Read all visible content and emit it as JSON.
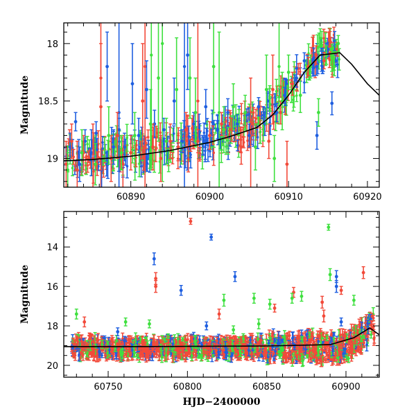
{
  "chart_data": [
    {
      "type": "scatter",
      "panel": "top",
      "xlabel": "",
      "ylabel": "Magnitude",
      "xlim": [
        60881.5,
        60921.5
      ],
      "ylim": [
        19.25,
        17.82
      ],
      "y_inverted": true,
      "xticks_major": [
        60890,
        60900,
        60910,
        60920
      ],
      "xtick_labels": [
        "60890",
        "60900",
        "60910",
        "60920"
      ],
      "yticks_major": [
        18,
        18.5,
        19
      ],
      "ytick_labels": [
        "18",
        "18.5",
        "19"
      ],
      "series_colors": [
        "#1f5fe0",
        "#f24a3a",
        "#3fe03f"
      ],
      "model_curve": {
        "x": [
          60881.5,
          60885,
          60890,
          60895,
          60900,
          60903,
          60906,
          60908,
          60910,
          60912,
          60914,
          60916.5,
          60918,
          60920,
          60921.5
        ],
        "y": [
          19.02,
          19.01,
          18.98,
          18.93,
          18.86,
          18.8,
          18.73,
          18.62,
          18.45,
          18.25,
          18.1,
          18.08,
          18.18,
          18.35,
          18.45
        ]
      },
      "series": [
        {
          "color": "#1f5fe0",
          "points": [
            [
              60882.3,
              18.9,
              0.12
            ],
            [
              60883.0,
              18.68,
              0.08
            ],
            [
              60883.5,
              19.05,
              0.15
            ],
            [
              60884.2,
              18.85,
              0.1
            ],
            [
              60885.0,
              18.95,
              0.2
            ],
            [
              60885.6,
              18.78,
              0.1
            ],
            [
              60886.3,
              19.1,
              0.18
            ],
            [
              60887.0,
              18.2,
              0.3
            ],
            [
              60887.8,
              18.9,
              0.15
            ],
            [
              60888.5,
              18.75,
              0.1
            ],
            [
              60889.2,
              18.9,
              0.12
            ],
            [
              60890.2,
              18.35,
              0.35
            ],
            [
              60891.0,
              18.8,
              0.15
            ],
            [
              60892.0,
              18.4,
              0.25
            ],
            [
              60893.0,
              18.7,
              0.12
            ],
            [
              60894.2,
              18.75,
              0.1
            ],
            [
              60895.5,
              18.5,
              0.2
            ],
            [
              60896.5,
              18.85,
              0.1
            ],
            [
              60897.2,
              18.1,
              0.3
            ],
            [
              60898.0,
              18.7,
              0.1
            ],
            [
              60899.5,
              18.55,
              0.15
            ],
            [
              60901.0,
              18.75,
              0.08
            ],
            [
              60902.3,
              18.6,
              0.12
            ],
            [
              60903.5,
              18.7,
              0.08
            ],
            [
              60905.0,
              18.8,
              0.1
            ],
            [
              60906.2,
              18.55,
              0.08
            ],
            [
              60907.0,
              18.7,
              0.1
            ],
            [
              60908.5,
              18.6,
              0.08
            ],
            [
              60909.5,
              18.45,
              0.07
            ],
            [
              60911.0,
              18.3,
              0.08
            ],
            [
              60912.0,
              18.15,
              0.07
            ],
            [
              60913.0,
              18.2,
              0.06
            ],
            [
              60913.6,
              18.8,
              0.12
            ],
            [
              60914.2,
              18.1,
              0.06
            ],
            [
              60915.0,
              18.05,
              0.06
            ],
            [
              60915.5,
              18.52,
              0.1
            ],
            [
              60916.0,
              18.15,
              0.05
            ]
          ]
        },
        {
          "color": "#f24a3a",
          "points": [
            [
              60881.8,
              19.05,
              0.2
            ],
            [
              60882.5,
              18.85,
              0.15
            ],
            [
              60883.2,
              19.1,
              0.25
            ],
            [
              60884.0,
              18.95,
              0.15
            ],
            [
              60885.2,
              19.0,
              0.3
            ],
            [
              60886.2,
              18.55,
              0.55
            ],
            [
              60887.5,
              19.0,
              0.2
            ],
            [
              60888.3,
              18.8,
              0.2
            ],
            [
              60889.0,
              19.05,
              0.25
            ],
            [
              60890.0,
              18.95,
              0.15
            ],
            [
              60891.5,
              18.5,
              0.5
            ],
            [
              60892.8,
              18.9,
              0.2
            ],
            [
              60893.8,
              19.0,
              0.2
            ],
            [
              60895.0,
              18.85,
              0.15
            ],
            [
              60896.0,
              18.9,
              0.12
            ],
            [
              60897.0,
              18.75,
              0.15
            ],
            [
              60898.5,
              18.85,
              0.1
            ],
            [
              60900.0,
              18.8,
              0.12
            ],
            [
              60901.5,
              18.7,
              0.1
            ],
            [
              60902.8,
              18.75,
              0.1
            ],
            [
              60904.0,
              18.9,
              0.15
            ],
            [
              60905.5,
              18.7,
              0.1
            ],
            [
              60907.5,
              18.85,
              0.15
            ],
            [
              60908.0,
              18.4,
              0.3
            ],
            [
              60909.0,
              18.6,
              0.1
            ],
            [
              60909.8,
              19.05,
              0.2
            ],
            [
              60910.5,
              18.35,
              0.1
            ],
            [
              60912.5,
              18.2,
              0.08
            ],
            [
              60913.5,
              18.1,
              0.08
            ],
            [
              60914.5,
              18.15,
              0.07
            ],
            [
              60915.2,
              17.95,
              0.08
            ],
            [
              60916.2,
              18.05,
              0.06
            ]
          ]
        },
        {
          "color": "#3fe03f",
          "points": [
            [
              60882.0,
              19.1,
              0.15
            ],
            [
              60883.8,
              18.95,
              0.2
            ],
            [
              60885.5,
              19.05,
              0.18
            ],
            [
              60887.2,
              18.8,
              0.25
            ],
            [
              60888.8,
              18.95,
              0.15
            ],
            [
              60890.5,
              18.8,
              0.2
            ],
            [
              60892.5,
              18.7,
              0.3
            ],
            [
              60893.5,
              18.3,
              0.55
            ],
            [
              60894.5,
              18.85,
              0.2
            ],
            [
              60895.8,
              18.4,
              0.45
            ],
            [
              60897.5,
              18.3,
              0.35
            ],
            [
              60898.2,
              18.6,
              0.3
            ],
            [
              60900.5,
              18.2,
              0.4
            ],
            [
              60901.8,
              18.75,
              0.2
            ],
            [
              60903.0,
              18.55,
              0.2
            ],
            [
              60904.5,
              18.6,
              0.15
            ],
            [
              60905.8,
              18.9,
              0.2
            ],
            [
              60907.2,
              18.4,
              0.3
            ],
            [
              60908.2,
              19.0,
              0.2
            ],
            [
              60909.2,
              18.5,
              0.25
            ],
            [
              60910.0,
              18.25,
              0.15
            ],
            [
              60911.5,
              18.45,
              0.15
            ],
            [
              60912.8,
              18.2,
              0.1
            ],
            [
              60913.8,
              18.6,
              0.12
            ],
            [
              60914.8,
              18.1,
              0.08
            ],
            [
              60915.8,
              18.2,
              0.08
            ],
            [
              60916.3,
              18.0,
              0.07
            ]
          ]
        }
      ]
    },
    {
      "type": "scatter",
      "panel": "bottom",
      "xlabel": "HJD−2400000",
      "ylabel": "Magnitude",
      "xlim": [
        60722,
        60921
      ],
      "ylim": [
        20.6,
        12.2
      ],
      "y_inverted": true,
      "xticks_major": [
        60750,
        60800,
        60850,
        60900
      ],
      "xtick_labels": [
        "60750",
        "60800",
        "60850",
        "60900"
      ],
      "yticks_major": [
        14,
        16,
        18,
        20
      ],
      "ytick_labels": [
        "14",
        "16",
        "18",
        "20"
      ],
      "series_colors": [
        "#1f5fe0",
        "#f24a3a",
        "#3fe03f"
      ],
      "model_curve": {
        "x": [
          60722,
          60760,
          60800,
          60850,
          60890,
          60905,
          60915,
          60921
        ],
        "y": [
          19.05,
          19.05,
          19.04,
          19.02,
          18.95,
          18.6,
          18.1,
          18.45
        ]
      },
      "outliers": [
        {
          "color": "#f24a3a",
          "points": [
            [
              60802,
              12.7,
              0.15
            ],
            [
              60780,
              15.6,
              0.3
            ],
            [
              60867,
              16.3,
              0.25
            ],
            [
              60886,
              17.5,
              0.3
            ],
            [
              60897,
              16.2,
              0.2
            ],
            [
              60885,
              16.8,
              0.3
            ],
            [
              60735,
              17.8,
              0.25
            ],
            [
              60911,
              15.3,
              0.3
            ],
            [
              60780,
              16.0,
              0.3
            ],
            [
              60820,
              17.4,
              0.25
            ],
            [
              60855,
              17.1,
              0.2
            ]
          ]
        },
        {
          "color": "#1f5fe0",
          "points": [
            [
              60815,
              13.5,
              0.15
            ],
            [
              60779,
              14.6,
              0.3
            ],
            [
              60796,
              16.2,
              0.25
            ],
            [
              60830,
              15.5,
              0.25
            ],
            [
              60894,
              15.5,
              0.3
            ],
            [
              60894,
              16.0,
              0.3
            ],
            [
              60756,
              18.3,
              0.2
            ],
            [
              60812,
              18.0,
              0.2
            ],
            [
              60897,
              17.8,
              0.2
            ]
          ]
        },
        {
          "color": "#3fe03f",
          "points": [
            [
              60889,
              13.0,
              0.15
            ],
            [
              60890,
              15.4,
              0.3
            ],
            [
              60823,
              16.7,
              0.3
            ],
            [
              60842,
              16.6,
              0.25
            ],
            [
              60852,
              16.9,
              0.25
            ],
            [
              60866,
              16.6,
              0.25
            ],
            [
              60872,
              16.5,
              0.25
            ],
            [
              60905,
              16.7,
              0.25
            ],
            [
              60730,
              17.4,
              0.25
            ],
            [
              60761,
              17.8,
              0.2
            ],
            [
              60776,
              17.9,
              0.2
            ],
            [
              60829,
              18.2,
              0.2
            ],
            [
              60845,
              17.9,
              0.25
            ]
          ]
        }
      ]
    }
  ]
}
